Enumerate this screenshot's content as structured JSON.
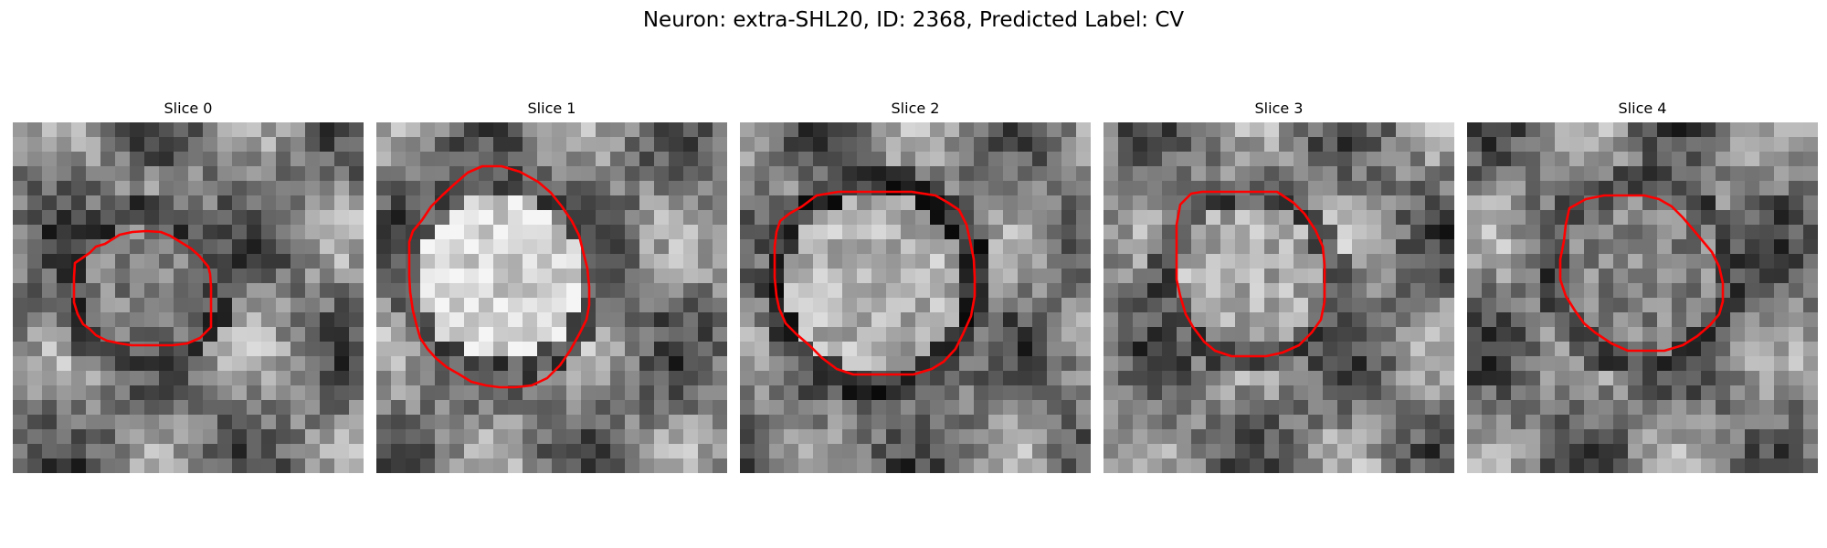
{
  "title": "Neuron: extra-SHL20, ID: 2368, Predicted Label: CV",
  "colors": {
    "contour": "#ff0000",
    "background": "#ffffff",
    "colormap": "gray"
  },
  "panels": [
    {
      "title": "Slice 0"
    },
    {
      "title": "Slice 1"
    },
    {
      "title": "Slice 2"
    },
    {
      "title": "Slice 3"
    },
    {
      "title": "Slice 4"
    }
  ]
}
